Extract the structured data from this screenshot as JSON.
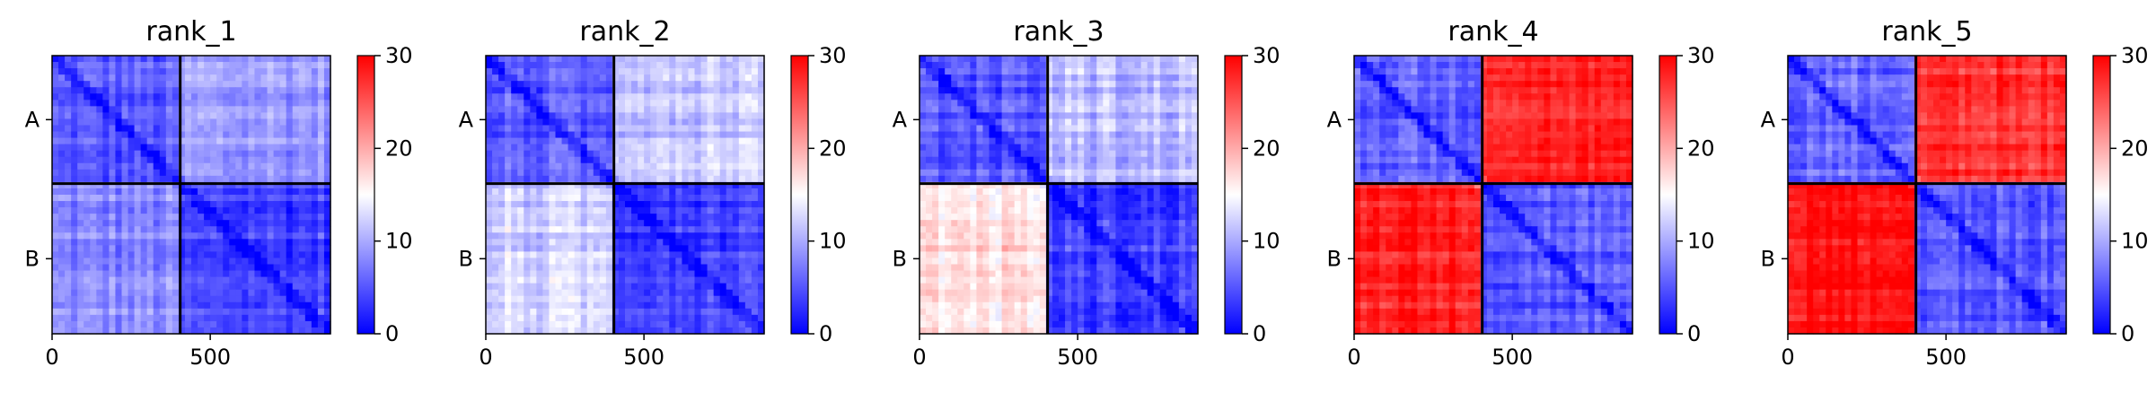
{
  "chart_data": {
    "type": "heatmap",
    "colormap": {
      "low": "#0000ff",
      "mid": "#ffffff",
      "high": "#ff0000"
    },
    "colorbar": {
      "range": [
        0,
        30
      ],
      "ticks": [
        "0",
        "10",
        "20",
        "30"
      ]
    },
    "x_axis": {
      "range": [
        0,
        880
      ],
      "ticks": [
        0,
        500
      ],
      "tick_labels": [
        "0",
        "500"
      ]
    },
    "chain_labels": [
      "A",
      "B"
    ],
    "chain_boundary": 405,
    "residue_count": 880,
    "panels": [
      {
        "title": "rank_1",
        "intra_A": 5,
        "intra_B": 4,
        "inter_AB": 9,
        "inter_BA": 8
      },
      {
        "title": "rank_2",
        "intra_A": 5,
        "intra_B": 4,
        "inter_AB": 12,
        "inter_BA": 12
      },
      {
        "title": "rank_3",
        "intra_A": 5,
        "intra_B": 4,
        "inter_AB": 11,
        "inter_BA": 17
      },
      {
        "title": "rank_4",
        "intra_A": 6,
        "intra_B": 5,
        "inter_AB": 28,
        "inter_BA": 28
      },
      {
        "title": "rank_5",
        "intra_A": 6,
        "intra_B": 5,
        "inter_AB": 27,
        "inter_BA": 29
      }
    ]
  }
}
